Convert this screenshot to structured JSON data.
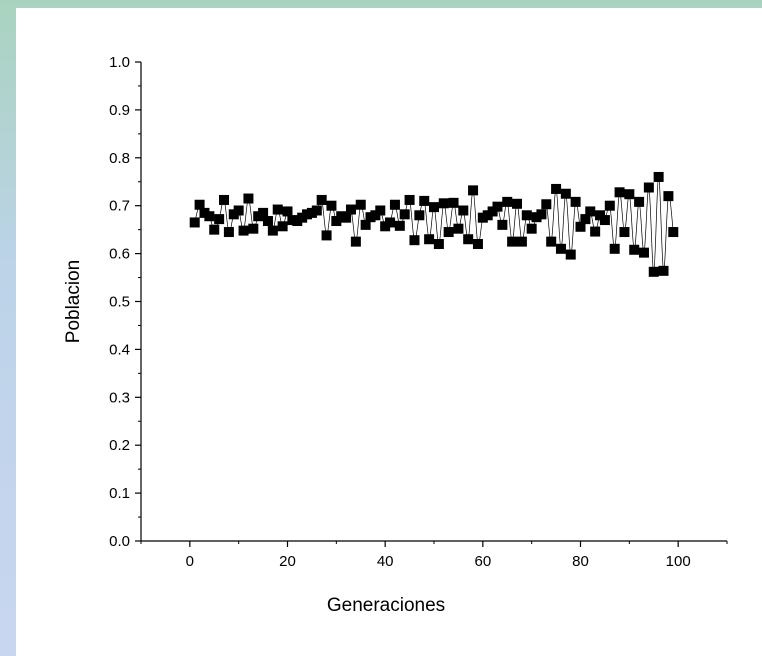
{
  "chart_data": {
    "type": "scatter",
    "xlabel": "Generaciones",
    "ylabel": "Poblacion",
    "xlim": [
      -10,
      110
    ],
    "ylim": [
      0.0,
      1.0
    ],
    "xticks": [
      "0",
      "20",
      "40",
      "60",
      "80",
      "100"
    ],
    "yticks": [
      "0.0",
      "0.1",
      "0.2",
      "0.3",
      "0.4",
      "0.5",
      "0.6",
      "0.7",
      "0.8",
      "0.9",
      "1.0"
    ],
    "grid": false,
    "legend": "none",
    "marker_color": "#000000",
    "line_color": "#000000",
    "series": [
      {
        "x": [
          1,
          2,
          3,
          4,
          5,
          6,
          7,
          8,
          9,
          10,
          11,
          12,
          13,
          14,
          15,
          16,
          17,
          18,
          19,
          20,
          21,
          22,
          23,
          24,
          25,
          26,
          27,
          28,
          29,
          30,
          31,
          32,
          33,
          34,
          35,
          36,
          37,
          38,
          39,
          40,
          41,
          42,
          43,
          44,
          45,
          46,
          47,
          48,
          49,
          50,
          51,
          52,
          53,
          54,
          55,
          56,
          57,
          58,
          59,
          60,
          61,
          62,
          63,
          64,
          65,
          66,
          67,
          68,
          69,
          70,
          71,
          72,
          73,
          74,
          75,
          76,
          77,
          78,
          79,
          80,
          81,
          82,
          83,
          84,
          85,
          86,
          87,
          88,
          89,
          90,
          91,
          92,
          93,
          94,
          95,
          96,
          97,
          98,
          99
        ],
        "values": [
          0.665,
          0.702,
          0.685,
          0.678,
          0.65,
          0.672,
          0.712,
          0.645,
          0.682,
          0.69,
          0.648,
          0.715,
          0.652,
          0.678,
          0.685,
          0.668,
          0.648,
          0.692,
          0.657,
          0.688,
          0.67,
          0.668,
          0.675,
          0.682,
          0.685,
          0.69,
          0.712,
          0.638,
          0.7,
          0.668,
          0.678,
          0.675,
          0.692,
          0.625,
          0.702,
          0.66,
          0.676,
          0.68,
          0.69,
          0.657,
          0.665,
          0.702,
          0.658,
          0.682,
          0.712,
          0.628,
          0.68,
          0.71,
          0.63,
          0.697,
          0.62,
          0.705,
          0.645,
          0.706,
          0.652,
          0.69,
          0.63,
          0.732,
          0.62,
          0.675,
          0.68,
          0.688,
          0.698,
          0.66,
          0.708,
          0.625,
          0.704,
          0.625,
          0.68,
          0.652,
          0.676,
          0.682,
          0.703,
          0.625,
          0.735,
          0.61,
          0.725,
          0.598,
          0.708,
          0.656,
          0.672,
          0.688,
          0.646,
          0.68,
          0.67,
          0.7,
          0.61,
          0.728,
          0.645,
          0.724,
          0.608,
          0.708,
          0.602,
          0.738,
          0.562,
          0.76,
          0.564,
          0.72,
          0.645
        ]
      }
    ]
  }
}
